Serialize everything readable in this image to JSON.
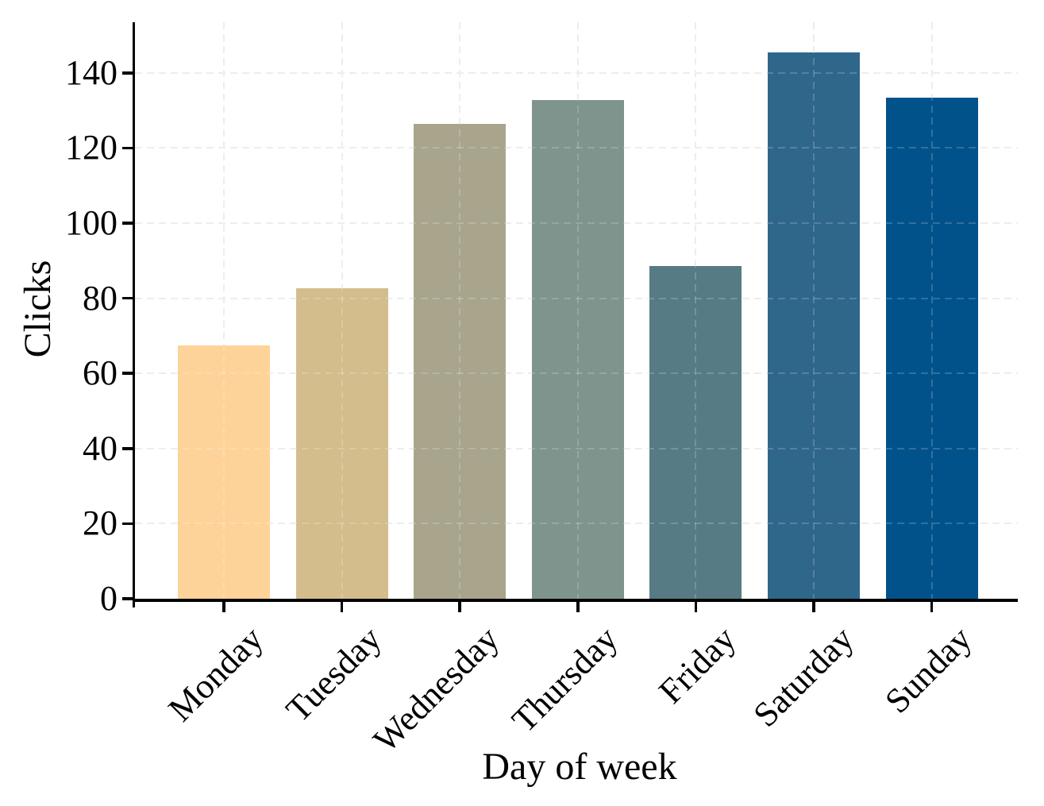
{
  "chart_data": {
    "type": "bar",
    "title": "",
    "xlabel": "Day of week",
    "ylabel": "Clicks",
    "categories": [
      "Monday",
      "Tuesday",
      "Wednesday",
      "Thursday",
      "Friday",
      "Saturday",
      "Sunday"
    ],
    "values": [
      67.5,
      82.6,
      126.5,
      132.7,
      88.5,
      145.5,
      133.5
    ],
    "ylim": [
      0,
      153.5
    ],
    "yticks": [
      0,
      20,
      40,
      60,
      80,
      100,
      120,
      140
    ],
    "ytick_labels": [
      "0",
      "20",
      "40",
      "60",
      "80",
      "100",
      "120",
      "140"
    ],
    "x_tick_rotation_deg": 45,
    "grid": "both-dashed-above-bars",
    "legend": "none",
    "colors": {
      "bars": [
        "#FDD39A",
        "#D3BD8D",
        "#A8A58C",
        "#7F948D",
        "#567B85",
        "#2F678B",
        "#01528A"
      ],
      "axis": "#000000",
      "grid_under": "#E9E9E9",
      "grid_over": "rgba(255,255,255,0.18)",
      "background": "#FFFFFF",
      "text": "#000000"
    }
  }
}
